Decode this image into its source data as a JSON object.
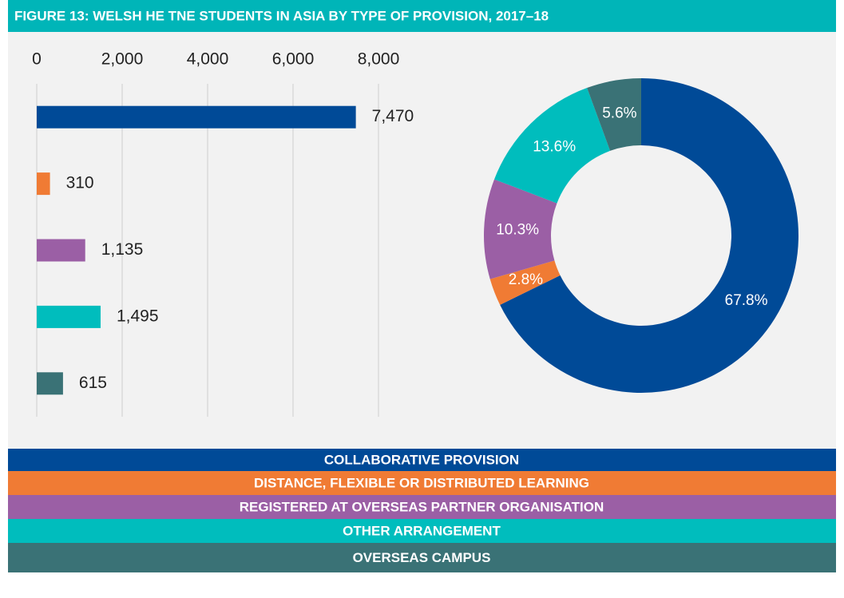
{
  "title": "FIGURE 13: WELSH HE TNE STUDENTS IN ASIA BY TYPE OF PROVISION, 2017–18",
  "chart_data": [
    {
      "type": "bar",
      "orientation": "horizontal",
      "categories": [
        "COLLABORATIVE PROVISION",
        "DISTANCE, FLEXIBLE OR DISTRIBUTED LEARNING",
        "REGISTERED AT OVERSEAS PARTNER ORGANISATION",
        "OTHER ARRANGEMENT",
        "OVERSEAS CAMPUS"
      ],
      "values": [
        7470,
        310,
        1135,
        1495,
        615
      ],
      "value_labels": [
        "7,470",
        "310",
        "1,135",
        "1,495",
        "615"
      ],
      "colors": [
        "#004a97",
        "#f07b34",
        "#9b5fa5",
        "#00bdbd",
        "#3a7276"
      ],
      "xlim": [
        0,
        8000
      ],
      "xticks": [
        0,
        {
          "value": 2000,
          "label": "2,000"
        },
        {
          "value": 4000,
          "label": "4,000"
        },
        {
          "value": 6000,
          "label": "6,000"
        },
        {
          "value": 8000,
          "label": "8,000"
        }
      ],
      "grid": true
    },
    {
      "type": "donut",
      "values": [
        67.8,
        2.8,
        10.3,
        13.6,
        5.6
      ],
      "value_labels": [
        "67.8%",
        "2.8%",
        "10.3%",
        "13.6%",
        "5.6%"
      ],
      "colors": [
        "#004a97",
        "#f07b34",
        "#9b5fa5",
        "#00bdbd",
        "#3a7276"
      ]
    }
  ]
}
